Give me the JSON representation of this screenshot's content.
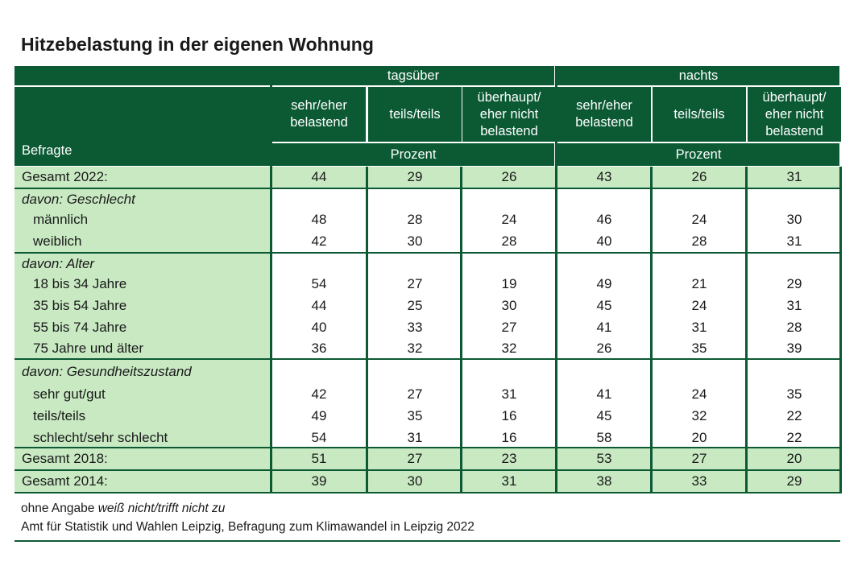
{
  "title": "Hitzebelastung in der eigenen Wohnung",
  "header": {
    "row_label": "Befragte",
    "groups": [
      "tagsüber",
      "nachts"
    ],
    "columns": [
      "sehr/eher belastend",
      "teils/teils",
      "überhaupt/ eher nicht belastend"
    ],
    "unit": "Prozent"
  },
  "rows": [
    {
      "type": "total",
      "label": "Gesamt 2022:",
      "values": [
        44,
        29,
        26,
        43,
        26,
        31
      ]
    },
    {
      "type": "group",
      "label": "davon: Geschlecht",
      "items": [
        {
          "label": "männlich",
          "values": [
            48,
            28,
            24,
            46,
            24,
            30
          ]
        },
        {
          "label": "weiblich",
          "values": [
            42,
            30,
            28,
            40,
            28,
            31
          ]
        }
      ]
    },
    {
      "type": "group",
      "label": "davon: Alter",
      "items": [
        {
          "label": "18 bis 34 Jahre",
          "values": [
            54,
            27,
            19,
            49,
            21,
            29
          ]
        },
        {
          "label": "35 bis 54 Jahre",
          "values": [
            44,
            25,
            30,
            45,
            24,
            31
          ]
        },
        {
          "label": "55 bis 74 Jahre",
          "values": [
            40,
            33,
            27,
            41,
            31,
            28
          ]
        },
        {
          "label": "75 Jahre und älter",
          "values": [
            36,
            32,
            32,
            26,
            35,
            39
          ]
        }
      ]
    },
    {
      "type": "group",
      "label": "davon: Gesundheitszustand",
      "items": [
        {
          "label": "sehr gut/gut",
          "values": [
            42,
            27,
            31,
            41,
            24,
            35
          ]
        },
        {
          "label": "teils/teils",
          "values": [
            49,
            35,
            16,
            45,
            32,
            22
          ]
        },
        {
          "label": "schlecht/sehr schlecht",
          "values": [
            54,
            31,
            16,
            58,
            20,
            22
          ]
        }
      ]
    },
    {
      "type": "total",
      "label": "Gesamt 2018:",
      "values": [
        51,
        27,
        23,
        53,
        27,
        20
      ]
    },
    {
      "type": "total",
      "label": "Gesamt 2014:",
      "values": [
        39,
        30,
        31,
        38,
        33,
        29
      ]
    }
  ],
  "footnote": {
    "prefix": "ohne Angabe ",
    "italic": "weiß nicht/trifft nicht zu"
  },
  "source": "Amt für Statistik und Wahlen Leipzig, Befragung zum Klimawandel in Leipzig 2022",
  "colors": {
    "header": "#0b5a34",
    "highlight": "#c8e9c2"
  }
}
